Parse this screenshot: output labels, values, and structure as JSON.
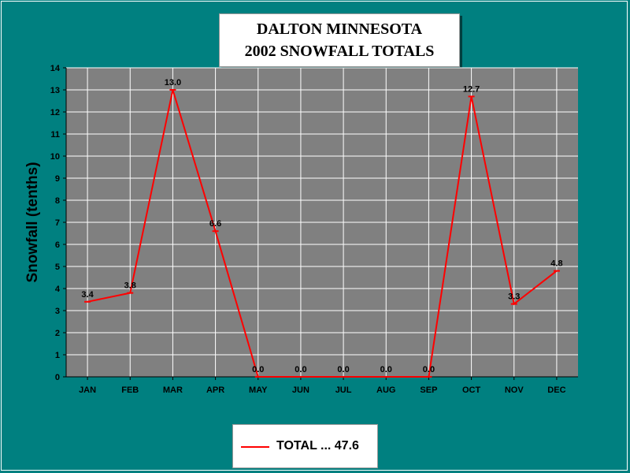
{
  "chart_data": {
    "type": "line",
    "title": [
      "DALTON MINNESOTA",
      "2002 SNOWFALL TOTALS"
    ],
    "ylabel": "Snowfall (tenths)",
    "xlabel": "",
    "categories": [
      "JAN",
      "FEB",
      "MAR",
      "APR",
      "MAY",
      "JUN",
      "JUL",
      "AUG",
      "SEP",
      "OCT",
      "NOV",
      "DEC"
    ],
    "ylim": [
      0,
      14
    ],
    "yticks": [
      0,
      1,
      2,
      3,
      4,
      5,
      6,
      7,
      8,
      9,
      10,
      11,
      12,
      13,
      14
    ],
    "series": [
      {
        "name": "TOTAL ... 47.6",
        "values": [
          3.4,
          3.8,
          13.0,
          6.6,
          0.0,
          0.0,
          0.0,
          0.0,
          0.0,
          12.7,
          3.3,
          4.8
        ],
        "labels": [
          "3.4",
          "3.8",
          "13.0",
          "6.6",
          "0.0",
          "0.0",
          "0.0",
          "0.0",
          "0.0",
          "12.7",
          "3.3",
          "4.8"
        ]
      }
    ],
    "grid": true,
    "legend": "bottom-center",
    "colors": {
      "background": "#008080",
      "plot_area": "#808080",
      "series_line": "#ff0000",
      "grid": "#ffffff"
    }
  }
}
